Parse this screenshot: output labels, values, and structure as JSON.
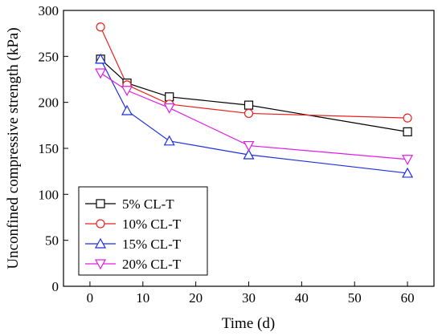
{
  "chart_data": {
    "type": "line",
    "title": "",
    "xlabel": "Time (d)",
    "ylabel": "Unconfined compressive strength (kPa)",
    "xlim": [
      -5,
      65
    ],
    "ylim": [
      0,
      300
    ],
    "xticks": [
      0,
      10,
      20,
      30,
      40,
      50,
      60
    ],
    "yticks": [
      0,
      50,
      100,
      150,
      200,
      250,
      300
    ],
    "x": [
      2,
      7,
      15,
      30,
      60
    ],
    "grid": false,
    "legend_position": "bottom-left",
    "series": [
      {
        "name": "5% CL-T",
        "color": "#000000",
        "marker": "square",
        "values": [
          247,
          221,
          206,
          197,
          168
        ]
      },
      {
        "name": "10% CL-T",
        "color": "#e8211c",
        "marker": "circle",
        "values": [
          282,
          219,
          198,
          188,
          183
        ]
      },
      {
        "name": "15% CL-T",
        "color": "#1c2fe0",
        "marker": "triangle-up",
        "values": [
          247,
          191,
          158,
          143,
          123
        ]
      },
      {
        "name": "20% CL-T",
        "color": "#e01ce8",
        "marker": "triangle-down",
        "values": [
          232,
          213,
          194,
          153,
          138
        ]
      }
    ]
  }
}
